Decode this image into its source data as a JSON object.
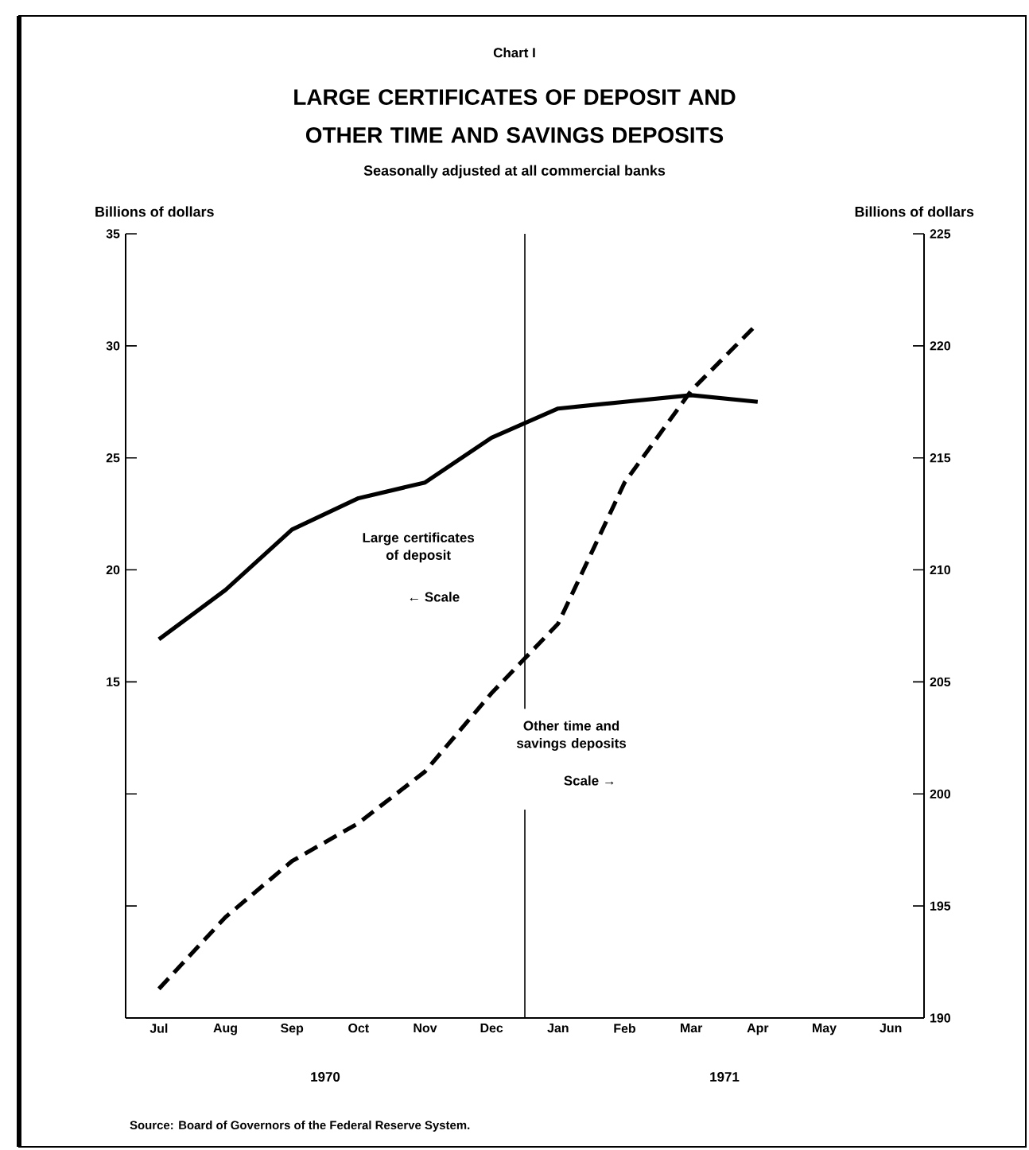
{
  "chart_data": {
    "type": "line",
    "title": "LARGE CERTIFICATES OF DEPOSIT AND OTHER TIME AND SAVINGS DEPOSITS",
    "subtitle": "Seasonally adjusted at all commercial banks",
    "ylabel": "Billions of dollars",
    "y2label": "Billions of dollars",
    "categories": [
      "Jul",
      "Aug",
      "Sep",
      "Oct",
      "Nov",
      "Dec",
      "Jan",
      "Feb",
      "Mar",
      "Apr",
      "May",
      "Jun"
    ],
    "series": [
      {
        "name": "Large certificates of deposit",
        "color": "#000000",
        "line_style": "solid",
        "values": [
          16.9,
          19.1,
          21.8,
          23.2,
          23.9,
          25.9,
          27.2,
          27.5,
          27.8,
          27.5,
          null,
          null
        ]
      },
      {
        "name": "Other time and savings deposits",
        "color": "#000000",
        "line_style": "dashed",
        "axis": "y2",
        "values": [
          191.3,
          194.5,
          197.0,
          198.7,
          201.0,
          204.5,
          207.6,
          213.9,
          218.0,
          221.0,
          null,
          null
        ]
      }
    ],
    "ylim": [
      0,
      35
    ],
    "yticks": [
      {
        "value": 5,
        "label": null
      },
      {
        "value": 10,
        "label": null
      },
      15,
      20,
      25,
      30,
      35
    ],
    "y2lim": [
      190,
      225
    ],
    "y2ticks": [
      190,
      195,
      200,
      205,
      210,
      215,
      220,
      225
    ],
    "grid": false,
    "annotations": [
      "Chart I",
      "1970",
      "1971",
      "Source:  Board of Governors of the Federal Reserve System.",
      "← Scale",
      "Scale →"
    ]
  }
}
